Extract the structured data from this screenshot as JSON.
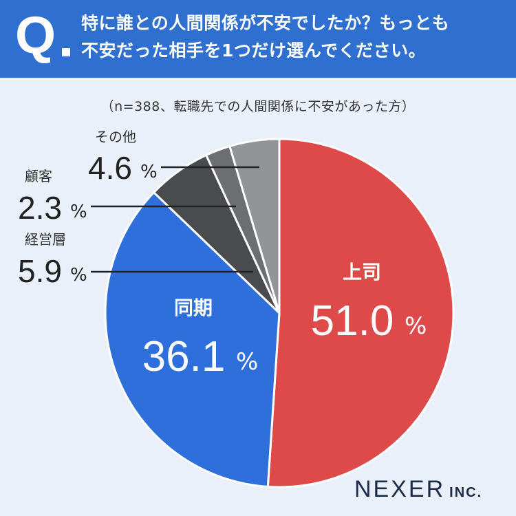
{
  "question": {
    "mark": "Q",
    "lines": [
      "特に誰との人間関係が不安でしたか？もっとも",
      "不安だった相手を1つだけ選んでください。"
    ]
  },
  "note": "（n=388、転職先での人間関係に不安があった方）",
  "brand": {
    "name": "NEXER",
    "suffix": "INC."
  },
  "chart_data": {
    "type": "pie",
    "unit": "%",
    "start": "12 o'clock",
    "direction": "clockwise",
    "slices": [
      {
        "label": "上司",
        "value": 51.0,
        "display": "51.0",
        "color": "#de4a4a",
        "label_position": "inside"
      },
      {
        "label": "同期",
        "value": 36.1,
        "display": "36.1",
        "color": "#2f6fdc",
        "label_position": "inside"
      },
      {
        "label": "経営層",
        "value": 5.9,
        "display": "5.9",
        "color": "#4a4b4f",
        "label_position": "outside-left"
      },
      {
        "label": "顧客",
        "value": 2.3,
        "display": "2.3",
        "color": "#6d6e72",
        "label_position": "outside-left"
      },
      {
        "label": "その他",
        "value": 4.6,
        "display": "4.6",
        "color": "#939497",
        "label_position": "outside-left"
      }
    ]
  }
}
